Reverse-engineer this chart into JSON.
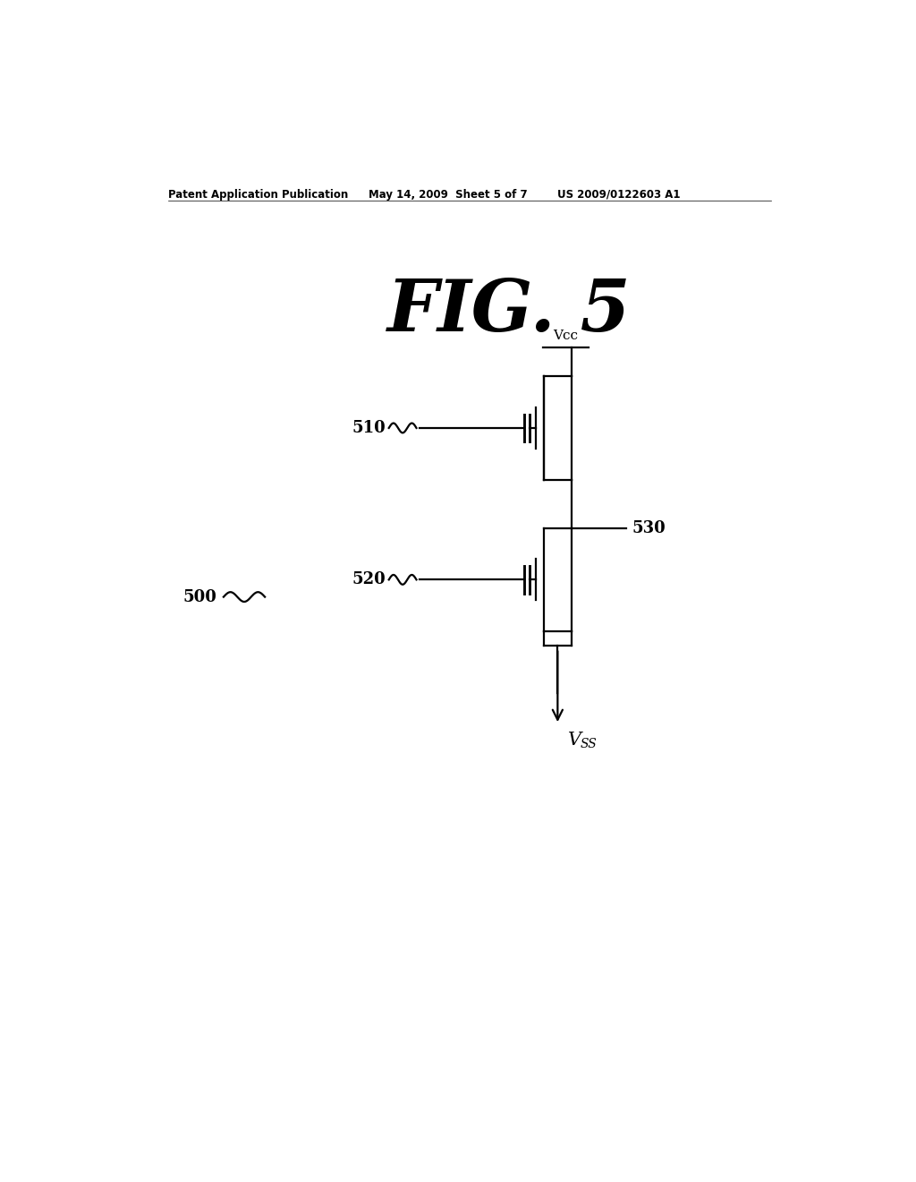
{
  "bg_color": "#ffffff",
  "fig_width": 10.24,
  "fig_height": 13.2,
  "header_left": "Patent Application Publication",
  "header_mid": "May 14, 2009  Sheet 5 of 7",
  "header_right": "US 2009/0122603 A1",
  "fig_title": "FIG. 5",
  "label_500": "500",
  "label_510": "510",
  "label_520": "520",
  "label_530": "530",
  "label_vcc": "Vcc",
  "label_vss": "V",
  "label_vss_sub": "SS",
  "lw": 1.6
}
